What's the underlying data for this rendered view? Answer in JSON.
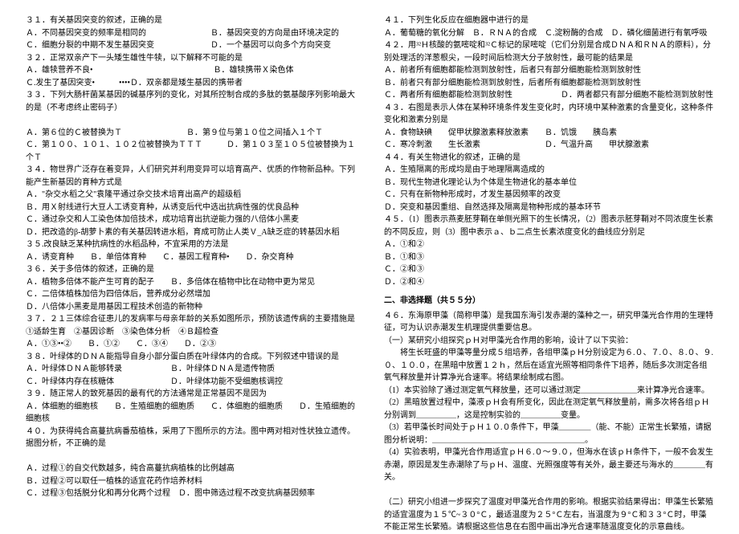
{
  "left": [
    "３１．有关基因突变的叙述，正确的是",
    "Ａ．不同基因突变的频率是相同的　　　　　　　　Ｂ．基因突变的方向是由环境决定的",
    "Ｃ．细胞分裂的中期不发生基因突变　　　　　　　Ｄ．一个基因可以向多个方向突变",
    "３２．正常双亲产下一头矮生雄性牛犊，以下解释不可能的是",
    "Ａ．雄犊营养不良•　　　　　　　　　　　　　　　Ｂ．雄犊携带Ｘ染色体",
    "Ｃ.发生了基因突变•　　　••••Ｄ．双亲都是矮生基因的携带者",
    "３３．下列大肠杆菌某基因的碱基序列的变化，对其所控制合成的多肽的氨基酸序列影响最大的是（不考虑终止密码子）",
    "",
    "Ａ．第６位的Ｃ被替换为Ｔ　　　　　　　　Ｂ．第９位与第１０位之间插入１个Ｔ",
    "Ｃ．第１００、１０１、１０２位被替换为ＴＴＴ　　　Ｄ．第１０３至１０５位被替换为１个Ｔ",
    "３４．物世界广泛存在着变异，人们研究并利用变异可以培育高产、优质的作物新品种。下列能产生新基因的育种方式是",
    "Ａ．\"杂交水稻之父\"袁隆平通过杂交技术培育出高产的超级稻",
    "Ｂ．用Ｘ射线进行大豆人工诱变育种，从诱变后代中选出抗病性强的优良品种",
    "Ｃ．通过杂交和人工染色体加倍技术，成功培育出抗逆能力强的八倍体小黑麦",
    "Ｄ．把改造的β-胡萝卜素的有关基因转进水稻，育成可防止人类Ｖ_A缺乏症的转基因水稻",
    "３５.改良缺乏某种抗病性的水稻品种，不宜采用的方法是",
    "Ａ．诱变育种　　Ｂ．单倍体育种　　Ｃ．基因工程育种•　　Ｄ．杂交育种",
    "３６．关于多倍体的叙述，正确的是",
    "Ａ．植物多倍体不能产生可育的配子　　Ｂ．多倍体在植物中比在动物中更为常见",
    "Ｃ．二倍体植株加倍为四倍体后，营养成分必然增加",
    "Ｄ．八倍体小黑麦是用基因工程技术创造的新物种",
    "３７．２１三体综合征患儿的发病率与母亲年龄的关系如图所示，预防该遗传病的主要措施是",
    "①适龄生育　②基因诊断　③染色体分析　④Ｂ超检查",
    "Ａ．①③••②　　Ｂ．①②　　Ｃ．③④　　Ｄ．②③",
    "３８．叶绿体的ＤＮＡ能指导自身小部分蛋白质在叶绿体内的合成。下列叙述中错误的是",
    "Ａ．叶绿体ＤＮＡ能够转录　　　　　　Ｂ．叶绿体ＤＮＡ是遗传物质",
    "Ｃ．叶绿体内存在核糖体　　　　　　　Ｄ．叶绿体功能不受细胞核调控",
    "３９．随正常人的致死基因的最有代的方法通常是正常基因不是因为",
    "Ａ．体细胞的细胞核　　Ｂ．生殖细胞的细胞质　　Ｃ．体细胞的细胞质　　Ｄ．生殖细胞的细胞核",
    "４０．为获得纯合高蔓抗病番茄植株，采用了下图所示的方法。图中两对相对性状独立遗传。据图分析，不正确的是",
    "",
    "Ａ．过程①的自交代数越多，纯合高蔓抗病植株的比例越高",
    "Ｂ．过程②可以取任一植株的适宜花药作培养材料",
    "Ｃ．过程③包括脱分化和再分化两个过程　Ｄ．图中筛选过程不改变抗病基因频率"
  ],
  "right_a": [
    "４１．下列生化反应在细胞器中进行的是",
    "Ａ．葡萄糖的氧化分解　Ｂ．ＲＮＡ的合成　Ｃ.淀粉酶的合成　Ｄ．磷化细菌进行有氧呼吸",
    "４２．用³²Ｈ核酸的氨嘧啶和³²Ｃ标记的尿嘧啶（它们分别是合成ＤＮＡ和ＲＮＡ的原料），分别处理活的洋葱根尖，一段时间后检测大分子放射性，最可能的结果是",
    "Ａ．前者所有细胞都能检测到放射性，后者只有部分细胞能检测到放射性",
    "Ｂ．前者只有部分细胞能检测到放射性，后者所有细胞都能检测到放射性",
    "Ｃ．两者所有细胞都能检测到放射性　　　　　　Ｄ．两者都只有部分细胞不能检测到放射性",
    "４３．右图是表示人体在某种环境条件发生变化时，内环境中某种激素的含量变化，这种条件变化和激素分别是",
    "Ａ．食物缺碘　　促甲状腺激素释放激素　　Ｂ．饥饿　　胰岛素",
    "Ｃ．寒冷刺激　　生长激素　　　　　　　　Ｄ．气温升高　　甲状腺激素",
    "４４．有关生物进化的叙述，正确的是",
    "Ａ．生殖隔离的形成均是由于地理隔离造成的",
    "Ｂ．现代生物进化理论认为个体是生物进化的基本单位",
    "Ｃ．只有在新物种形成时，才发生基因频率的改变",
    "Ｄ．突变和基因重组、自然选择及隔离是物种形成的基本环节",
    "４５．（1）图表示燕麦胚芽鞘在单侧光照下的生长情况，（2）图表示胚芽鞘对不同浓度生长素的不同反应，则（3）图中表示ａ、ｂ二点生长素浓度变化的曲线应分别足",
    "Ａ．①和②",
    "Ｂ．①和③",
    "Ｃ．②和③",
    "Ｄ．②和④"
  ],
  "right_section_title": "二、非选择题（共５５分）",
  "right_b": [
    "４６．东海原甲藻（简称甲藻）是我国东海引发赤潮的藻种之一，研究甲藻光合作用的生理特征，可为认识赤潮发生机理提供重要信息。",
    "（一）某研究小组探究ｐＨ对甲藻光合作用的影响，设计了以下实验：",
    "　　将生长旺盛的甲藻等量分成５组培养，各组甲藻ｐＨ分别设定为６.０、７.０、８.０、９.０、１０.０，在黑暗中放置１２ｈ，然后在适宜光照等相同条件下培养，随后多次测定各组氧气释放量并计算净光合速率。将结果绘制成右图。",
    "（1）本实验除了通过测定氧气释放量，还可以通过测定＿＿＿＿＿＿＿来计算净光合速率。",
    "（2）黑暗放置过程中，藻液ｐＨ会有所变化，因此在测定氧气释放量前，需多次将各组ｐＨ分别调到＿＿＿＿＿，这是控制实验的＿＿＿＿＿变量。",
    "（3）若甲藻长时间处于ｐＨ１０.０条件下，甲藻＿＿＿＿（能、不能）正常生长繁殖，请据图分析说明：＿＿＿＿＿＿＿＿＿＿＿＿＿＿＿＿＿＿＿。",
    "（4）实验表明，甲藻光合作用适宜ｐＨ６.０～９.０，但海水在该ｐＨ条件下，一般不会发生赤潮，原因是发生赤潮除了与ｐＨ、温度、光照强度等有关外，最主要还与海水的＿＿＿＿有关。",
    "",
    "（二）研究小组进一步探究了温度对甲藻光合作用的影响。根据实验结果得出：甲藻生长繁殖的适宜温度为１５℃~３０°Ｃ，最适温度为２５°Ｃ左右，当温度为９°Ｃ和３３°Ｃ时，甲藻不能正常生长繁殖。请根据这些信息在右图中画出净光合速率随温度变化的示意曲线。"
  ]
}
